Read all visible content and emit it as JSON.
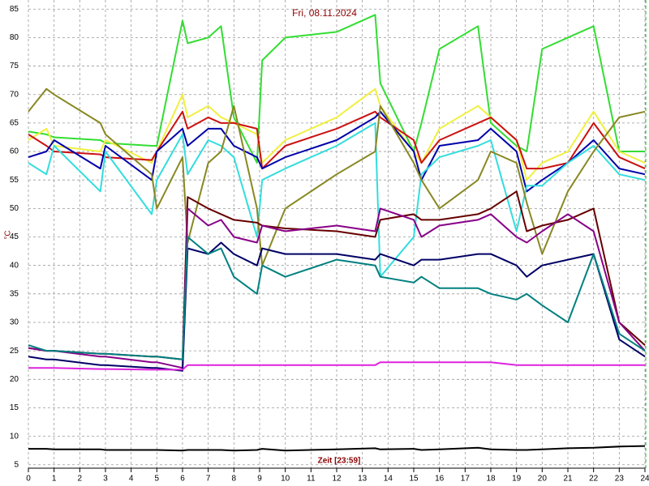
{
  "chart_data": {
    "type": "line",
    "title": "Fri, 08.11.2024",
    "y_label": "°C",
    "x_label": "Zeit [23:59]",
    "x": [
      0,
      0.7,
      1,
      2.8,
      3,
      4.8,
      5,
      6,
      6.2,
      7,
      7.5,
      8,
      8.9,
      9.1,
      10,
      12,
      13.5,
      13.7,
      15,
      15.3,
      16,
      17.5,
      18,
      19,
      19.4,
      20,
      21,
      22,
      23,
      24
    ],
    "xlim": [
      0,
      24
    ],
    "xticks": [
      0,
      1,
      2,
      3,
      4,
      5,
      6,
      7,
      8,
      9,
      10,
      11,
      12,
      13,
      14,
      15,
      16,
      17,
      18,
      19,
      20,
      21,
      22,
      23,
      24
    ],
    "ylim": [
      4.4,
      86.6
    ],
    "yticks": [
      5,
      10,
      15,
      20,
      25,
      30,
      35,
      40,
      45,
      50,
      55,
      60,
      65,
      70,
      75,
      80,
      85
    ],
    "grid": true,
    "series": [
      {
        "color": "#33dd33",
        "values": [
          63.5,
          63,
          62.5,
          62,
          61.5,
          61,
          61,
          83,
          79,
          80,
          82,
          66,
          58,
          76,
          80,
          81,
          84,
          72,
          60,
          65,
          78,
          82,
          65,
          61,
          60,
          78,
          80,
          82,
          60,
          60
        ]
      },
      {
        "color": "#f0f040",
        "values": [
          62,
          64,
          61,
          60,
          62,
          58,
          60,
          70,
          66,
          68,
          66,
          65,
          63,
          58,
          62,
          66,
          71,
          68,
          60,
          58,
          64,
          68,
          66,
          62,
          55,
          58,
          60,
          67,
          60,
          58
        ]
      },
      {
        "color": "#cc1111",
        "values": [
          63,
          61,
          60,
          59.5,
          59,
          58.5,
          60,
          67,
          64,
          66,
          65,
          65,
          64,
          57,
          61,
          64,
          67,
          66,
          62,
          58,
          62,
          65,
          66,
          62,
          57,
          57,
          58,
          65,
          59,
          57
        ]
      },
      {
        "color": "#0000aa",
        "values": [
          59,
          60,
          62,
          57,
          61,
          55,
          60,
          64,
          61,
          64,
          64,
          61,
          59,
          57,
          59,
          62,
          66,
          67,
          60,
          55,
          61,
          62,
          64,
          60,
          53,
          55,
          58,
          62,
          57,
          56
        ]
      },
      {
        "color": "#33dddd",
        "values": [
          58,
          56,
          61,
          53,
          60,
          49,
          55,
          63,
          56,
          62,
          61,
          59,
          45,
          55,
          57,
          61,
          65,
          38,
          45,
          56,
          59,
          61,
          62,
          46,
          54,
          54,
          58,
          61,
          56,
          55
        ]
      },
      {
        "color": "#888822",
        "values": [
          67,
          71,
          70,
          65,
          63,
          56,
          50,
          59,
          44,
          58,
          60,
          68,
          50,
          40,
          50,
          56,
          60,
          68,
          58,
          55,
          50,
          55,
          60,
          58,
          51,
          42,
          53,
          60,
          66,
          67
        ]
      },
      {
        "color": "#660000",
        "values": [
          25.5,
          25,
          25,
          24.5,
          24.5,
          24,
          24,
          23.5,
          52,
          50,
          49,
          48,
          47.5,
          47,
          46.5,
          46,
          45,
          48,
          49,
          48,
          48,
          49,
          50,
          53,
          46,
          47,
          48,
          50,
          30,
          26
        ]
      },
      {
        "color": "#880088",
        "values": [
          25.5,
          25,
          25,
          24,
          24,
          23,
          23,
          22,
          50,
          47,
          48,
          45,
          44,
          47,
          46,
          47,
          46,
          50,
          48,
          45,
          47,
          48,
          49,
          45,
          44,
          46,
          49,
          46,
          30,
          25
        ]
      },
      {
        "color": "#000066",
        "values": [
          24,
          23.5,
          23.5,
          22.5,
          22.5,
          22,
          22,
          21.5,
          43,
          42,
          44,
          42,
          40,
          43,
          42,
          42,
          41,
          42,
          40,
          41,
          41,
          42,
          42,
          40,
          38,
          40,
          41,
          42,
          27,
          24
        ]
      },
      {
        "color": "#008080",
        "values": [
          26,
          25,
          25,
          24.5,
          24.5,
          24,
          24,
          23.5,
          45,
          42,
          43,
          38,
          35,
          40,
          38,
          41,
          40,
          38,
          37,
          38,
          36,
          36,
          35,
          34,
          35,
          33,
          30,
          42,
          28,
          25
        ]
      },
      {
        "color": "#dd22dd",
        "values": [
          22,
          22,
          22,
          21.8,
          21.8,
          21.7,
          21.7,
          21.7,
          22.5,
          22.5,
          22.5,
          22.5,
          22.5,
          22.5,
          22.5,
          22.5,
          22.5,
          23,
          23,
          23,
          23,
          23,
          23,
          22.5,
          22.5,
          22.5,
          22.5,
          22.5,
          22.5,
          22.5
        ]
      },
      {
        "color": "#000000",
        "values": [
          7.8,
          7.8,
          7.7,
          7.7,
          7.6,
          7.6,
          7.6,
          7.5,
          7.6,
          7.6,
          7.6,
          7.5,
          7.6,
          7.8,
          7.5,
          7.7,
          7.9,
          7.7,
          7.8,
          7.6,
          7.7,
          8,
          7.7,
          7.6,
          7.6,
          7.7,
          7.9,
          8,
          8.2,
          8.3
        ]
      }
    ]
  }
}
